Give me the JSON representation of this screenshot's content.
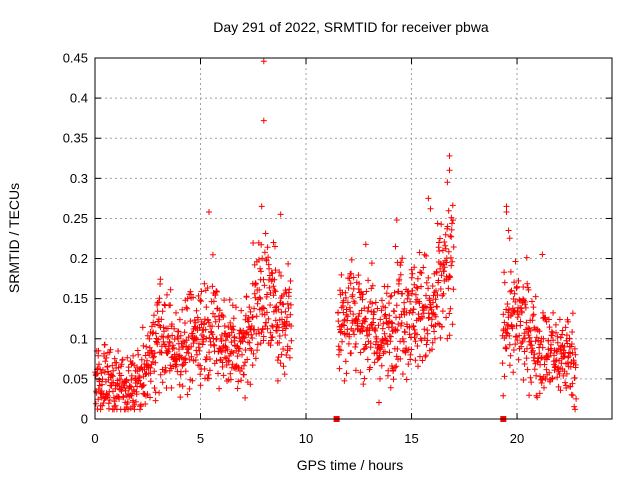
{
  "chart_data": {
    "type": "scatter",
    "title": "Day 291 of 2022, SRMTID for receiver pbwa",
    "xlabel": "GPS time / hours",
    "ylabel": "SRMTID / TECUs",
    "xlim": [
      0,
      24.5
    ],
    "ylim": [
      0,
      0.45
    ],
    "x_ticks": [
      0,
      5,
      10,
      15,
      20
    ],
    "x_tick_labels": [
      "0",
      "5",
      "10",
      "15",
      "20"
    ],
    "y_ticks": [
      0,
      0.05,
      0.1,
      0.15,
      0.2,
      0.25,
      0.3,
      0.35,
      0.4,
      0.45
    ],
    "y_tick_labels": [
      "0",
      "0.05",
      "0.1",
      "0.15",
      "0.2",
      "0.25",
      "0.3",
      "0.35",
      "0.4",
      "0.45"
    ],
    "grid": true,
    "marker": "plus",
    "color": "#ff0000",
    "series": [
      {
        "name": "SRMTID",
        "trend": [
          [
            0,
            0.05
          ],
          [
            0.5,
            0.05
          ],
          [
            1,
            0.04
          ],
          [
            1.5,
            0.035
          ],
          [
            2,
            0.045
          ],
          [
            2.5,
            0.06
          ],
          [
            3,
            0.11
          ],
          [
            3.5,
            0.09
          ],
          [
            4,
            0.09
          ],
          [
            4.5,
            0.1
          ],
          [
            5,
            0.11
          ],
          [
            5.5,
            0.12
          ],
          [
            6,
            0.1
          ],
          [
            6.5,
            0.09
          ],
          [
            7,
            0.09
          ],
          [
            7.5,
            0.13
          ],
          [
            8,
            0.16
          ],
          [
            8.5,
            0.14
          ],
          [
            9,
            0.12
          ],
          [
            9.3,
            0.14
          ],
          [
            11.5,
            0.12
          ],
          [
            12,
            0.14
          ],
          [
            12.5,
            0.13
          ],
          [
            13,
            0.12
          ],
          [
            13.5,
            0.09
          ],
          [
            14,
            0.12
          ],
          [
            14.5,
            0.14
          ],
          [
            15,
            0.13
          ],
          [
            15.5,
            0.14
          ],
          [
            16,
            0.12
          ],
          [
            16.5,
            0.18
          ],
          [
            17,
            0.18
          ],
          [
            19.3,
            0.11
          ],
          [
            19.5,
            0.13
          ],
          [
            20,
            0.12
          ],
          [
            20.5,
            0.11
          ],
          [
            21,
            0.09
          ],
          [
            21.5,
            0.08
          ],
          [
            22,
            0.08
          ],
          [
            22.5,
            0.08
          ],
          [
            22.8,
            0.07
          ]
        ],
        "outliers": [
          [
            8.0,
            0.446
          ],
          [
            8.0,
            0.372
          ],
          [
            16.8,
            0.328
          ],
          [
            16.8,
            0.31
          ],
          [
            16.7,
            0.295
          ],
          [
            19.5,
            0.265
          ],
          [
            19.5,
            0.258
          ],
          [
            5.4,
            0.258
          ],
          [
            7.9,
            0.265
          ],
          [
            14.3,
            0.248
          ],
          [
            15.8,
            0.275
          ],
          [
            15.9,
            0.262
          ],
          [
            19.6,
            0.235
          ],
          [
            8.8,
            0.255
          ],
          [
            21.2,
            0.205
          ],
          [
            22.8,
            0.025
          ],
          [
            1.5,
            0.015
          ]
        ]
      }
    ],
    "gap_markers": [
      [
        11.45,
        0.0
      ],
      [
        19.35,
        0.0
      ]
    ]
  }
}
